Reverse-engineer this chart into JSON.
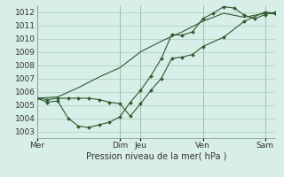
{
  "xlabel": "Pression niveau de la mer( hPa )",
  "ylim": [
    1002.5,
    1012.5
  ],
  "yticks": [
    1003,
    1004,
    1005,
    1006,
    1007,
    1008,
    1009,
    1010,
    1011,
    1012
  ],
  "bg_color": "#d8eee8",
  "grid_color": "#aaccbb",
  "line_color": "#2d5a2d",
  "x_day_labels": [
    "Mer",
    "Dim",
    "Jeu",
    "Ven",
    "Sam"
  ],
  "x_day_positions": [
    0,
    4,
    5,
    8,
    11
  ],
  "xlim": [
    0,
    11.5
  ],
  "line1_x": [
    0,
    0.5,
    1,
    1.5,
    2,
    2.5,
    3,
    3.5,
    4,
    4.5,
    5,
    5.5,
    6,
    6.5,
    7,
    7.5,
    8,
    8.5,
    9,
    9.5,
    10,
    10.5,
    11,
    11.5
  ],
  "line1_y": [
    1005.5,
    1005.2,
    1005.3,
    1004.0,
    1003.4,
    1003.3,
    1003.5,
    1003.7,
    1004.1,
    1005.2,
    1006.1,
    1007.2,
    1008.5,
    1010.3,
    1010.25,
    1010.5,
    1011.5,
    1011.9,
    1012.4,
    1012.3,
    1011.75,
    1011.5,
    1011.8,
    1012.0
  ],
  "line2_x": [
    0,
    0.5,
    1,
    1.5,
    2,
    2.5,
    3,
    3.5,
    4,
    4.5,
    5,
    5.5,
    6,
    6.5,
    7,
    7.5,
    8,
    9,
    10,
    11,
    11.5
  ],
  "line2_y": [
    1005.5,
    1005.4,
    1005.5,
    1005.5,
    1005.5,
    1005.5,
    1005.4,
    1005.2,
    1005.1,
    1004.15,
    1005.1,
    1006.1,
    1007.0,
    1008.5,
    1008.6,
    1008.8,
    1009.4,
    1010.1,
    1011.3,
    1012.0,
    1011.9
  ],
  "line3_x": [
    0,
    1,
    2,
    3,
    4,
    5,
    6,
    7,
    8,
    9,
    10,
    11,
    11.5
  ],
  "line3_y": [
    1005.5,
    1005.6,
    1006.3,
    1007.1,
    1007.8,
    1009.0,
    1009.8,
    1010.5,
    1011.3,
    1011.9,
    1011.6,
    1011.9,
    1011.85
  ]
}
